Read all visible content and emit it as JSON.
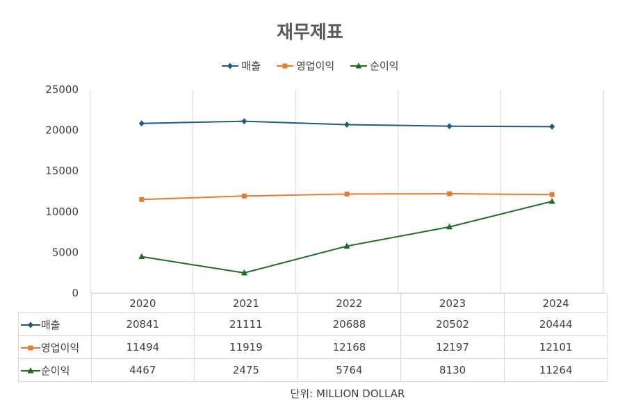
{
  "chart_data": {
    "type": "line",
    "title": "재무제표",
    "categories": [
      "2020",
      "2021",
      "2022",
      "2023",
      "2024"
    ],
    "ylim": [
      0,
      25000
    ],
    "yticks": [
      0,
      5000,
      10000,
      15000,
      20000,
      25000
    ],
    "grid": true,
    "legend_position": "top",
    "series": [
      {
        "name": "매출",
        "values": [
          20841,
          21111,
          20688,
          20502,
          20444
        ],
        "color": "#1f5a82",
        "marker": "diamond"
      },
      {
        "name": "영업이익",
        "values": [
          11494,
          11919,
          12168,
          12197,
          12101
        ],
        "color": "#e87a30",
        "marker": "square"
      },
      {
        "name": "순이익",
        "values": [
          4467,
          2475,
          5764,
          8130,
          11264
        ],
        "color": "#1e6b24",
        "marker": "triangle"
      }
    ],
    "unit_note": "단위: MILLION DOLLAR"
  }
}
